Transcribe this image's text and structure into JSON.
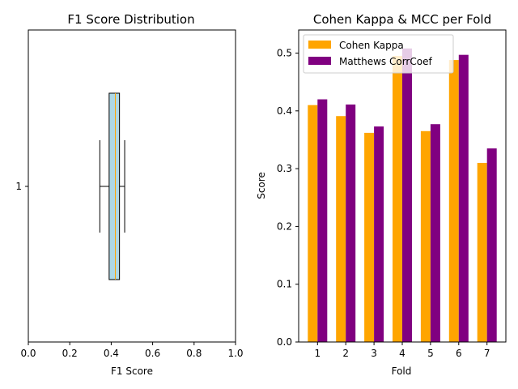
{
  "chart_data": [
    {
      "type": "boxplot",
      "title": "F1 Score Distribution",
      "xlabel": "F1 Score",
      "ylabel": "",
      "orientation": "horizontal",
      "xlim": [
        0,
        1
      ],
      "xticks": [
        "0.0",
        "0.2",
        "0.4",
        "0.6",
        "0.8",
        "1.0"
      ],
      "xtick_values": [
        0,
        0.2,
        0.4,
        0.6,
        0.8,
        1.0
      ],
      "yticks": [
        "1"
      ],
      "box": {
        "whisker_low": 0.345,
        "q1": 0.39,
        "median": 0.42,
        "q3": 0.44,
        "whisker_high": 0.465
      },
      "colors": {
        "box_fill": "#add8e6",
        "median": "#ffa500",
        "edge": "#000000"
      }
    },
    {
      "type": "bar",
      "title": "Cohen Kappa & MCC per Fold",
      "xlabel": "Fold",
      "ylabel": "Score",
      "categories": [
        "1",
        "2",
        "3",
        "4",
        "5",
        "6",
        "7"
      ],
      "ylim": [
        0,
        0.54
      ],
      "yticks": [
        "0.0",
        "0.1",
        "0.2",
        "0.3",
        "0.4",
        "0.5"
      ],
      "ytick_values": [
        0,
        0.1,
        0.2,
        0.3,
        0.4,
        0.5
      ],
      "legend_position": "top-left",
      "series": [
        {
          "name": "Cohen Kappa",
          "color": "#ffa500",
          "values": [
            0.41,
            0.391,
            0.362,
            0.495,
            0.365,
            0.488,
            0.31
          ]
        },
        {
          "name": "Matthews CorrCoef",
          "color": "#800080",
          "values": [
            0.42,
            0.411,
            0.373,
            0.508,
            0.377,
            0.497,
            0.335
          ]
        }
      ]
    }
  ]
}
